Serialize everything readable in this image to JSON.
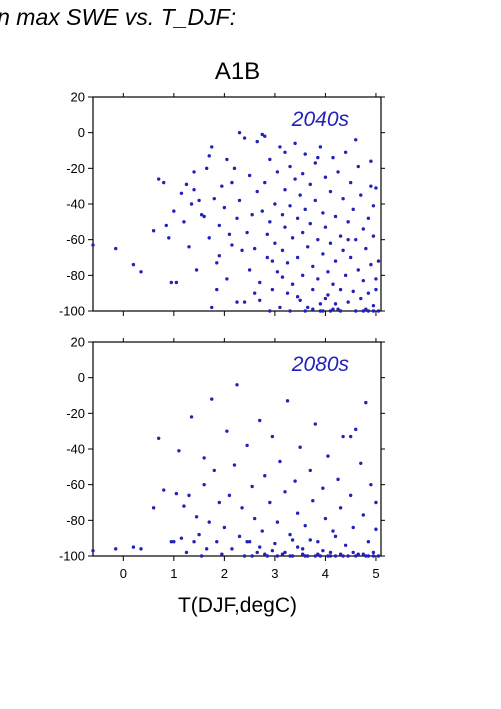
{
  "heading": "in max SWE vs. T_DJF:",
  "scenario": "A1B",
  "colors": {
    "points": "#2222bb",
    "axes": "#000000"
  },
  "chart_data": [
    {
      "type": "scatter",
      "panel_label": "2040s",
      "xlabel": "T(DJF,degC)",
      "ylabel": "",
      "xlim": [
        -0.6,
        5.1
      ],
      "ylim": [
        -100,
        20
      ],
      "xticks": [
        0,
        1,
        2,
        3,
        4,
        5
      ],
      "yticks": [
        20,
        0,
        -20,
        -40,
        -60,
        -80,
        -100
      ],
      "ytick_labels": [
        "20",
        "0",
        "-20",
        "-40",
        "-60",
        "-80",
        "-100"
      ],
      "grid": false,
      "points": [
        [
          -0.6,
          -63
        ],
        [
          -0.15,
          -65
        ],
        [
          0.2,
          -74
        ],
        [
          0.35,
          -78
        ],
        [
          0.6,
          -55
        ],
        [
          0.7,
          -26
        ],
        [
          0.8,
          -28
        ],
        [
          0.85,
          -52
        ],
        [
          0.9,
          -59
        ],
        [
          0.95,
          -84
        ],
        [
          1.05,
          -84
        ],
        [
          1.0,
          -44
        ],
        [
          1.15,
          -34
        ],
        [
          1.2,
          -50
        ],
        [
          1.25,
          -29
        ],
        [
          1.3,
          -64
        ],
        [
          1.35,
          -40
        ],
        [
          1.4,
          -32
        ],
        [
          1.4,
          -22
        ],
        [
          1.45,
          -77
        ],
        [
          1.5,
          -38
        ],
        [
          1.55,
          -46
        ],
        [
          1.6,
          -47
        ],
        [
          1.65,
          -20
        ],
        [
          1.7,
          -13
        ],
        [
          1.7,
          -59
        ],
        [
          1.75,
          -8
        ],
        [
          1.75,
          -98
        ],
        [
          1.8,
          -37
        ],
        [
          1.85,
          -88
        ],
        [
          1.85,
          -73
        ],
        [
          1.9,
          -69
        ],
        [
          1.9,
          -52
        ],
        [
          1.95,
          -30
        ],
        [
          2.0,
          -42
        ],
        [
          2.05,
          -15
        ],
        [
          2.1,
          -57
        ],
        [
          2.15,
          -28
        ],
        [
          2.15,
          -63
        ],
        [
          2.2,
          -20
        ],
        [
          2.25,
          -48
        ],
        [
          2.3,
          0
        ],
        [
          2.3,
          -38
        ],
        [
          2.35,
          -66
        ],
        [
          2.4,
          -3
        ],
        [
          2.4,
          -95
        ],
        [
          2.45,
          -56
        ],
        [
          2.5,
          -24
        ],
        [
          2.5,
          -77
        ],
        [
          2.55,
          -46
        ],
        [
          2.6,
          -65
        ],
        [
          2.65,
          -5
        ],
        [
          2.65,
          -33
        ],
        [
          2.7,
          -94
        ],
        [
          2.7,
          -84
        ],
        [
          2.75,
          -44
        ],
        [
          2.75,
          -1
        ],
        [
          2.8,
          -2
        ],
        [
          2.8,
          -28
        ],
        [
          2.85,
          -57
        ],
        [
          2.85,
          -70
        ],
        [
          2.9,
          -15
        ],
        [
          2.9,
          -50
        ],
        [
          2.95,
          -88
        ],
        [
          3.0,
          -40
        ],
        [
          3.0,
          -62
        ],
        [
          3.05,
          -22
        ],
        [
          3.05,
          -78
        ],
        [
          3.1,
          -8
        ],
        [
          3.1,
          -98
        ],
        [
          3.15,
          -46
        ],
        [
          3.15,
          -66
        ],
        [
          3.2,
          -32
        ],
        [
          3.2,
          -53
        ],
        [
          3.25,
          -73
        ],
        [
          3.25,
          -90
        ],
        [
          3.3,
          -19
        ],
        [
          3.3,
          -41
        ],
        [
          3.35,
          -59
        ],
        [
          3.35,
          -85
        ],
        [
          3.4,
          -6
        ],
        [
          3.4,
          -26
        ],
        [
          3.45,
          -48
        ],
        [
          3.45,
          -70
        ],
        [
          3.5,
          -94
        ],
        [
          3.5,
          -35
        ],
        [
          3.55,
          -56
        ],
        [
          3.55,
          -80
        ],
        [
          3.6,
          -12
        ],
        [
          3.6,
          -43
        ],
        [
          3.65,
          -64
        ],
        [
          3.65,
          -98
        ],
        [
          3.7,
          -29
        ],
        [
          3.7,
          -51
        ],
        [
          3.75,
          -75
        ],
        [
          3.75,
          -88
        ],
        [
          3.8,
          -17
        ],
        [
          3.8,
          -38
        ],
        [
          3.85,
          -60
        ],
        [
          3.85,
          -82
        ],
        [
          3.9,
          -8
        ],
        [
          3.9,
          -96
        ],
        [
          3.95,
          -45
        ],
        [
          3.95,
          -68
        ],
        [
          4.0,
          -25
        ],
        [
          4.0,
          -53
        ],
        [
          4.05,
          -78
        ],
        [
          4.05,
          -91
        ],
        [
          4.1,
          -33
        ],
        [
          4.1,
          -62
        ],
        [
          4.15,
          -14
        ],
        [
          4.15,
          -85
        ],
        [
          4.2,
          -47
        ],
        [
          4.2,
          -72
        ],
        [
          4.25,
          -22
        ],
        [
          4.25,
          -99
        ],
        [
          4.3,
          -58
        ],
        [
          4.3,
          -88
        ],
        [
          4.35,
          -37
        ],
        [
          4.35,
          -66
        ],
        [
          4.4,
          -11
        ],
        [
          4.4,
          -80
        ],
        [
          4.45,
          -50
        ],
        [
          4.45,
          -95
        ],
        [
          4.5,
          -28
        ],
        [
          4.5,
          -70
        ],
        [
          4.55,
          -43
        ],
        [
          4.55,
          -89
        ],
        [
          4.6,
          -60
        ],
        [
          4.6,
          -100
        ],
        [
          4.65,
          -19
        ],
        [
          4.65,
          -77
        ],
        [
          4.7,
          -35
        ],
        [
          4.7,
          -93
        ],
        [
          4.75,
          -54
        ],
        [
          4.75,
          -83
        ],
        [
          4.8,
          -65
        ],
        [
          4.8,
          -99
        ],
        [
          4.85,
          -48
        ],
        [
          4.85,
          -90
        ],
        [
          4.9,
          -30
        ],
        [
          4.9,
          -74
        ],
        [
          4.95,
          -58
        ],
        [
          4.95,
          -97
        ],
        [
          5.0,
          -82
        ],
        [
          5.0,
          -88
        ],
        [
          5.05,
          -72
        ],
        [
          5.05,
          -100
        ],
        [
          4.9,
          -16
        ],
        [
          5.0,
          -31
        ],
        [
          4.95,
          -41
        ],
        [
          4.6,
          -4
        ],
        [
          4.3,
          -100
        ],
        [
          4.1,
          -100
        ],
        [
          3.9,
          -100
        ],
        [
          3.6,
          -100
        ],
        [
          3.3,
          -100
        ],
        [
          2.9,
          -100
        ],
        [
          3.85,
          -14
        ],
        [
          3.2,
          -11
        ],
        [
          3.55,
          -23
        ],
        [
          2.95,
          -72
        ],
        [
          2.6,
          -90
        ],
        [
          2.25,
          -95
        ],
        [
          2.05,
          -82
        ],
        [
          3.15,
          -81
        ],
        [
          3.45,
          -92
        ],
        [
          4.0,
          -93
        ],
        [
          4.45,
          -60
        ],
        [
          4.2,
          -96
        ],
        [
          4.75,
          -100
        ],
        [
          4.85,
          -100
        ],
        [
          4.95,
          -100
        ],
        [
          3.75,
          -99
        ],
        [
          3.95,
          -100
        ],
        [
          4.15,
          -99
        ]
      ]
    },
    {
      "type": "scatter",
      "panel_label": "2080s",
      "xlabel": "T(DJF,degC)",
      "ylabel": "",
      "xlim": [
        -0.6,
        5.1
      ],
      "ylim": [
        -100,
        20
      ],
      "xticks": [
        0,
        1,
        2,
        3,
        4,
        5
      ],
      "xtick_labels": [
        "0",
        "1",
        "2",
        "3",
        "4",
        "5"
      ],
      "yticks": [
        20,
        0,
        -20,
        -40,
        -60,
        -80,
        -100
      ],
      "ytick_labels": [
        "20",
        "0",
        "-20",
        "-40",
        "-60",
        "-80",
        "-100"
      ],
      "grid": false,
      "points": [
        [
          -0.6,
          -97
        ],
        [
          -0.15,
          -96
        ],
        [
          0.2,
          -95
        ],
        [
          0.35,
          -96
        ],
        [
          0.6,
          -73
        ],
        [
          0.7,
          -34
        ],
        [
          0.8,
          -63
        ],
        [
          0.95,
          -92
        ],
        [
          1.0,
          -92
        ],
        [
          1.05,
          -65
        ],
        [
          1.1,
          -41
        ],
        [
          1.15,
          -90
        ],
        [
          1.2,
          -72
        ],
        [
          1.25,
          -98
        ],
        [
          1.3,
          -66
        ],
        [
          1.35,
          -22
        ],
        [
          1.4,
          -92
        ],
        [
          1.45,
          -78
        ],
        [
          1.5,
          -88
        ],
        [
          1.55,
          -100
        ],
        [
          1.6,
          -60
        ],
        [
          1.6,
          -45
        ],
        [
          1.65,
          -96
        ],
        [
          1.7,
          -81
        ],
        [
          1.75,
          -12
        ],
        [
          1.8,
          -52
        ],
        [
          1.85,
          -92
        ],
        [
          1.9,
          -70
        ],
        [
          1.95,
          -99
        ],
        [
          2.0,
          -84
        ],
        [
          2.05,
          -30
        ],
        [
          2.1,
          -66
        ],
        [
          2.15,
          -96
        ],
        [
          2.2,
          -49
        ],
        [
          2.25,
          -4
        ],
        [
          2.3,
          -89
        ],
        [
          2.35,
          -73
        ],
        [
          2.4,
          -100
        ],
        [
          2.45,
          -38
        ],
        [
          2.5,
          -92
        ],
        [
          2.55,
          -61
        ],
        [
          2.6,
          -79
        ],
        [
          2.65,
          -98
        ],
        [
          2.7,
          -24
        ],
        [
          2.75,
          -86
        ],
        [
          2.8,
          -55
        ],
        [
          2.85,
          -100
        ],
        [
          2.9,
          -70
        ],
        [
          2.95,
          -33
        ],
        [
          3.0,
          -93
        ],
        [
          3.05,
          -81
        ],
        [
          3.1,
          -47
        ],
        [
          3.15,
          -99
        ],
        [
          3.2,
          -64
        ],
        [
          3.25,
          -13
        ],
        [
          3.3,
          -88
        ],
        [
          3.35,
          -100
        ],
        [
          3.4,
          -58
        ],
        [
          3.45,
          -76
        ],
        [
          3.5,
          -39
        ],
        [
          3.55,
          -96
        ],
        [
          3.6,
          -83
        ],
        [
          3.65,
          -100
        ],
        [
          3.7,
          -52
        ],
        [
          3.75,
          -69
        ],
        [
          3.8,
          -26
        ],
        [
          3.85,
          -92
        ],
        [
          3.9,
          -100
        ],
        [
          3.95,
          -62
        ],
        [
          4.0,
          -79
        ],
        [
          4.05,
          -44
        ],
        [
          4.1,
          -98
        ],
        [
          4.15,
          -86
        ],
        [
          4.2,
          -100
        ],
        [
          4.25,
          -57
        ],
        [
          4.3,
          -73
        ],
        [
          4.35,
          -33
        ],
        [
          4.4,
          -94
        ],
        [
          4.45,
          -100
        ],
        [
          4.5,
          -66
        ],
        [
          4.55,
          -84
        ],
        [
          4.6,
          -29
        ],
        [
          4.65,
          -99
        ],
        [
          4.7,
          -48
        ],
        [
          4.75,
          -77
        ],
        [
          4.8,
          -100
        ],
        [
          4.85,
          -92
        ],
        [
          4.9,
          -60
        ],
        [
          4.95,
          -98
        ],
        [
          5.0,
          -85
        ],
        [
          5.05,
          -100
        ],
        [
          5.0,
          -70
        ],
        [
          4.8,
          -14
        ],
        [
          4.5,
          -33
        ],
        [
          4.2,
          -89
        ],
        [
          3.95,
          -97
        ],
        [
          3.7,
          -91
        ],
        [
          3.45,
          -95
        ],
        [
          3.2,
          -98
        ],
        [
          2.95,
          -97
        ],
        [
          2.7,
          -95
        ],
        [
          2.45,
          -92
        ],
        [
          3.35,
          -91
        ],
        [
          3.6,
          -100
        ],
        [
          3.85,
          -99
        ],
        [
          4.1,
          -100
        ],
        [
          4.35,
          -100
        ],
        [
          4.6,
          -100
        ],
        [
          4.75,
          -99
        ],
        [
          4.95,
          -100
        ],
        [
          3.3,
          -100
        ],
        [
          3.55,
          -99
        ],
        [
          3.8,
          -100
        ],
        [
          4.05,
          -100
        ],
        [
          4.3,
          -99
        ],
        [
          4.55,
          -98
        ],
        [
          4.85,
          -100
        ],
        [
          2.55,
          -100
        ],
        [
          2.8,
          -99
        ],
        [
          3.05,
          -100
        ]
      ]
    }
  ]
}
